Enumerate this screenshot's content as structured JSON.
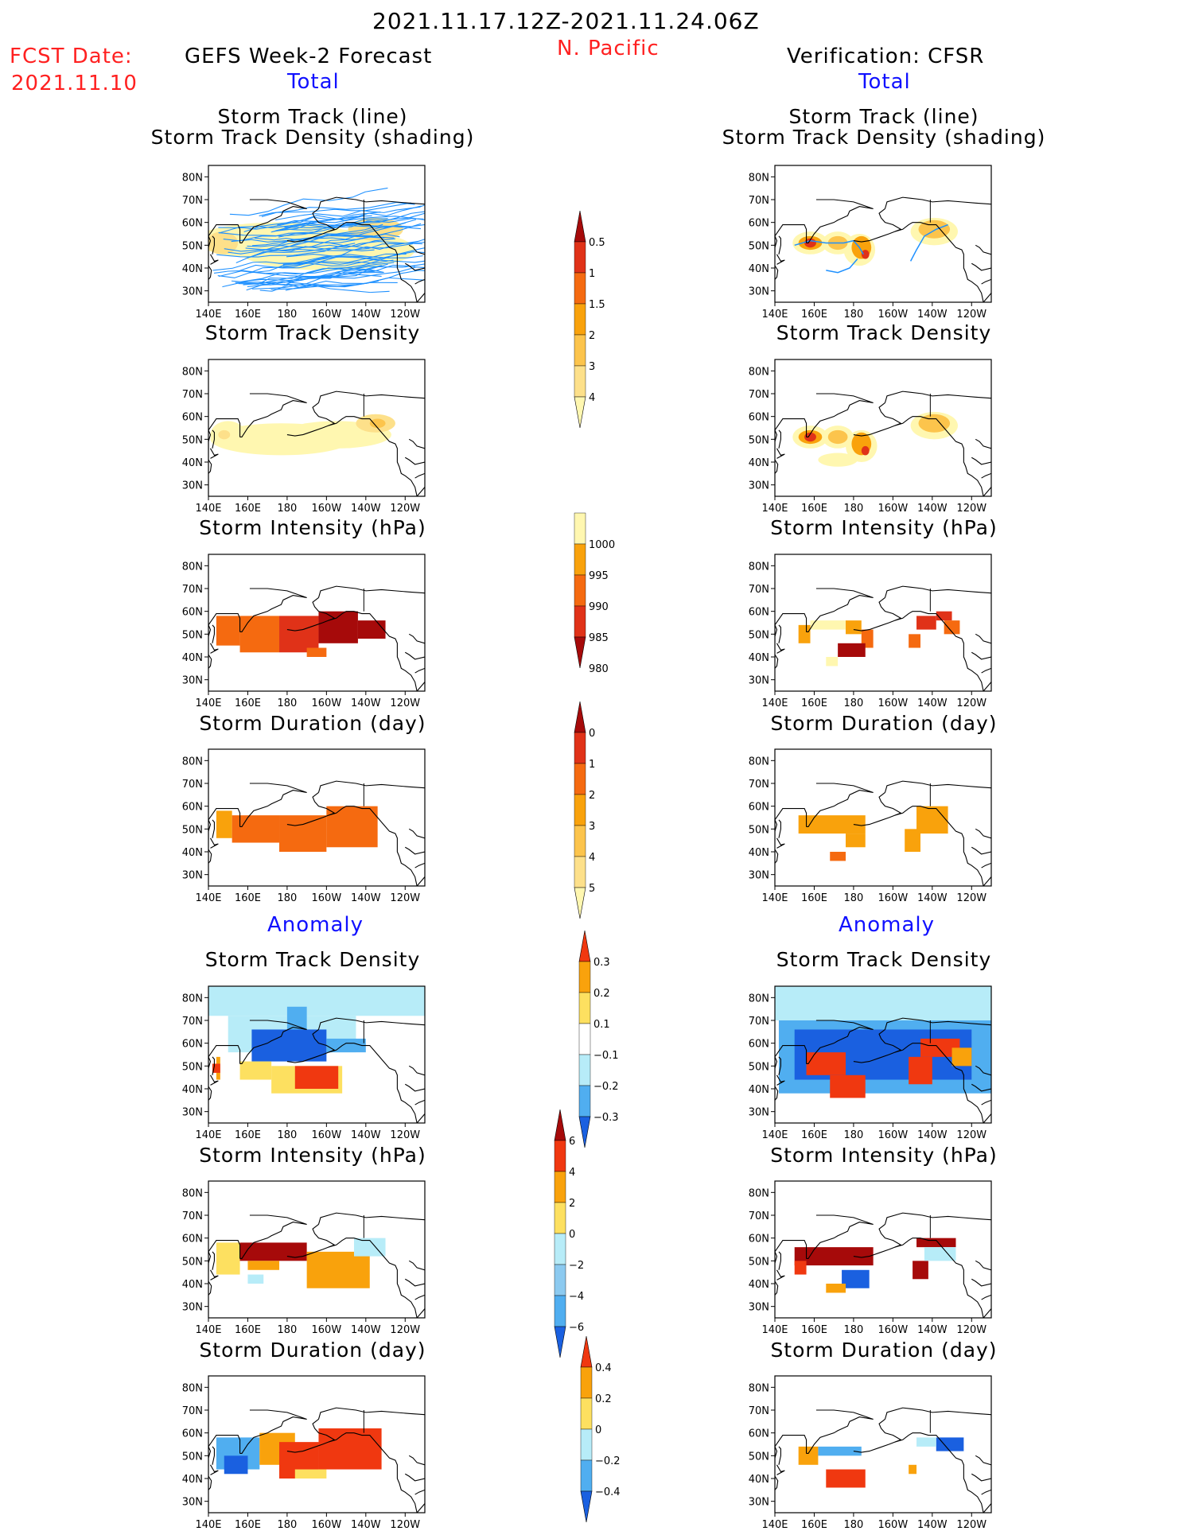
{
  "header": {
    "date_range": "2021.11.17.12Z-2021.11.24.06Z",
    "region": "N. Pacific",
    "fcst_label": "FCST Date:",
    "fcst_date": "2021.11.10",
    "left_title": "GEFS Week-2 Forecast",
    "right_title": "Verification: CFSR",
    "total_label": "Total",
    "anomaly_label": "Anomaly"
  },
  "panel_titles": {
    "track_line": "Storm Track (line)",
    "track_shading": "Storm Track Density (shading)",
    "density": "Storm Track Density",
    "intensity": "Storm Intensity (hPa)",
    "duration": "Storm Duration (day)"
  },
  "axes": {
    "lat_ticks": [
      "80N",
      "70N",
      "60N",
      "50N",
      "40N",
      "30N"
    ],
    "lon_ticks": [
      "140E",
      "160E",
      "180",
      "160W",
      "140W",
      "120W"
    ],
    "lat_range": [
      25,
      85
    ],
    "lon_range": [
      140,
      250
    ]
  },
  "chart_data": [
    {
      "type": "heatmap",
      "name": "Total storm track density colorbar",
      "levels": [
        "0.5",
        "1",
        "1.5",
        "2",
        "3",
        "4"
      ],
      "colors": [
        "#fff7b0",
        "#fde08a",
        "#fcc44c",
        "#f9a20c",
        "#f56a10",
        "#e03218",
        "#a60a0a"
      ]
    },
    {
      "type": "heatmap",
      "name": "Total storm intensity colorbar",
      "levels": [
        "1000",
        "995",
        "990",
        "985",
        "980"
      ],
      "colors": [
        "#fff7b0",
        "#f9a20c",
        "#f56a10",
        "#e03218",
        "#a60a0a"
      ]
    },
    {
      "type": "heatmap",
      "name": "Total storm duration colorbar",
      "levels": [
        "0",
        "1",
        "2",
        "3",
        "4",
        "5"
      ],
      "colors": [
        "#fff7b0",
        "#fde08a",
        "#fcc44c",
        "#f9a20c",
        "#f56a10",
        "#e03218",
        "#a60a0a"
      ]
    },
    {
      "type": "heatmap",
      "name": "Anomaly density colorbar",
      "levels": [
        "0.3",
        "0.2",
        "0.1",
        "−0.1",
        "−0.2",
        "−0.3"
      ],
      "colors": [
        "#f03810",
        "#f9a20c",
        "#fde060",
        "#ffffff",
        "#b7ecf8",
        "#50aef0",
        "#1a60e0"
      ]
    },
    {
      "type": "heatmap",
      "name": "Anomaly intensity colorbar",
      "levels": [
        "6",
        "4",
        "2",
        "0",
        "−2",
        "−4",
        "−6"
      ],
      "colors": [
        "#a60a0a",
        "#f03810",
        "#f9a20c",
        "#fde060",
        "#b7ecf8",
        "#8ccaf0",
        "#50aef0",
        "#1a60e0"
      ]
    },
    {
      "type": "heatmap",
      "name": "Anomaly duration colorbar",
      "levels": [
        "0.4",
        "0.2",
        "0",
        "−0.2",
        "−0.4"
      ],
      "colors": [
        "#f03810",
        "#f9a20c",
        "#fde060",
        "#b7ecf8",
        "#50aef0",
        "#1a60e0"
      ]
    }
  ],
  "colors": {
    "land_line": "#000000",
    "track_line": "#1e90ff",
    "header_red": "#ff2020",
    "header_blue": "#1010ff"
  }
}
